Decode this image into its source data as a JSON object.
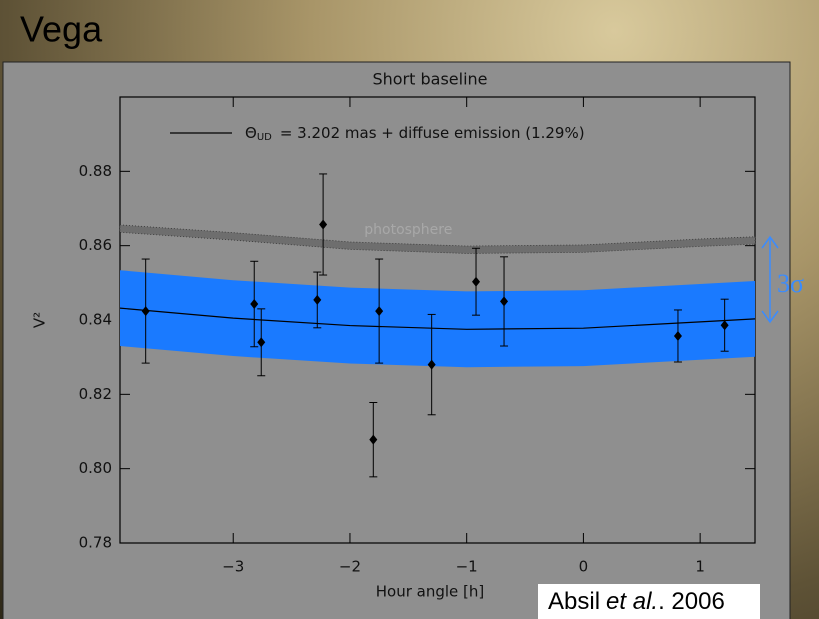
{
  "slide_title": "Vega",
  "citation": {
    "author": "Absil",
    "etal": "et al.",
    "year": ". 2006"
  },
  "chart_data": {
    "type": "scatter",
    "title": "Short baseline",
    "x_label": "Hour angle [h]",
    "y_label": "V²",
    "xlim": [
      -3.97,
      1.47
    ],
    "ylim": [
      0.78,
      0.9
    ],
    "xticks": [
      {
        "value": -3,
        "label": "−3"
      },
      {
        "value": -2,
        "label": "−2"
      },
      {
        "value": -1,
        "label": "−1"
      },
      0,
      1
    ],
    "yticks": [
      0.78,
      {
        "value": 0.8,
        "label": "0.80"
      },
      0.82,
      0.84,
      0.86,
      0.88
    ],
    "points": {
      "color": "#000000",
      "x": [
        -3.75,
        -2.82,
        -2.76,
        -2.28,
        -2.23,
        -1.8,
        -1.75,
        -1.3,
        -0.92,
        -0.68,
        0.81,
        1.21
      ],
      "values": [
        0.8424,
        0.8443,
        0.834,
        0.8454,
        0.8657,
        0.8078,
        0.8424,
        0.828,
        0.8503,
        0.845,
        0.8357,
        0.8386
      ],
      "errors": [
        0.014,
        0.0115,
        0.009,
        0.0075,
        0.0136,
        0.01,
        0.014,
        0.0135,
        0.009,
        0.012,
        0.007,
        0.007
      ]
    },
    "model": {
      "legend_symbol": "Θ",
      "legend_subscript": "UD",
      "legend_text": "= 3.202 mas + diffuse emission (1.29%)",
      "color": "#000000",
      "band_color": "#1a7aff",
      "x": [
        -3.97,
        -3,
        -2,
        -1,
        0,
        1,
        1.47
      ],
      "values": [
        0.8432,
        0.8405,
        0.8385,
        0.8375,
        0.8378,
        0.8395,
        0.8403
      ],
      "band_lower": [
        0.833,
        0.8303,
        0.8283,
        0.8273,
        0.8276,
        0.8293,
        0.8301
      ],
      "band_upper": [
        0.8534,
        0.8507,
        0.8487,
        0.8477,
        0.848,
        0.8497,
        0.8505
      ]
    },
    "photosphere": {
      "label": "photosphere",
      "color": "#6e6e6e",
      "x": [
        -3.97,
        -3,
        -2,
        -1,
        0,
        1,
        1.47
      ],
      "lower": [
        0.8636,
        0.8615,
        0.859,
        0.8579,
        0.8582,
        0.8598,
        0.8604
      ],
      "upper": [
        0.8656,
        0.8635,
        0.861,
        0.8599,
        0.8602,
        0.8618,
        0.8624
      ]
    },
    "sigma_label": "3σ"
  }
}
